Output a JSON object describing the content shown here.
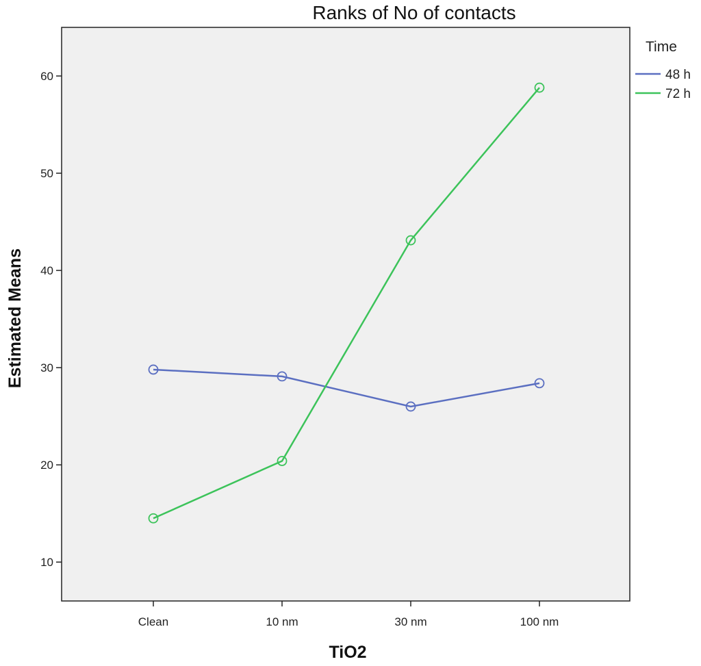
{
  "chart_data": {
    "type": "line",
    "title": "Ranks of No of contacts",
    "xlabel": "TiO2",
    "ylabel": "Estimated Means",
    "categories": [
      "Clean",
      "10 nm",
      "30 nm",
      "100 nm"
    ],
    "ylim": [
      6,
      65
    ],
    "yticks": [
      10,
      20,
      30,
      40,
      50,
      60
    ],
    "grid": false,
    "legend": {
      "title": "Time",
      "position": "right"
    },
    "series": [
      {
        "name": "48 h",
        "color": "#5b6fc1",
        "values": [
          29.8,
          29.1,
          26.0,
          28.4
        ]
      },
      {
        "name": "72 h",
        "color": "#3cc35a",
        "values": [
          14.5,
          20.4,
          43.1,
          58.8
        ]
      }
    ]
  },
  "colors": {
    "plot_background": "#f0f0f0",
    "frame": "#222222"
  }
}
